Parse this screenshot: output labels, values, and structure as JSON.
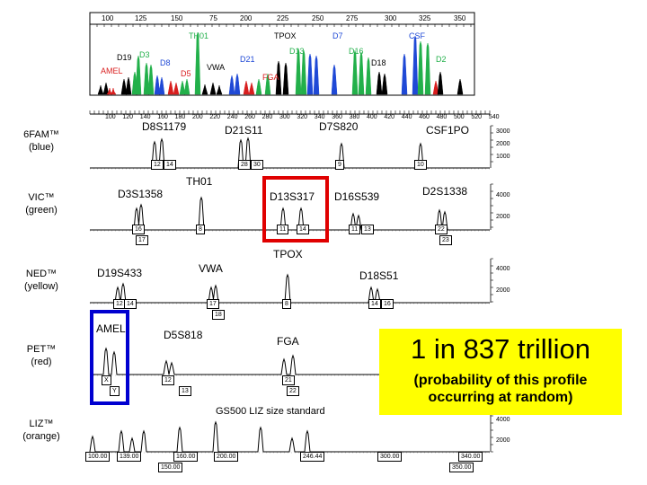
{
  "top_panel": {
    "ruler_ticks": [
      "100",
      "125",
      "150",
      "75",
      "200",
      "225",
      "250",
      "275",
      "300",
      "325",
      "350"
    ],
    "labels": {
      "th01": "TH01",
      "tpox": "TPOX",
      "d7": "D7",
      "csf": "CSF",
      "d13": "D13",
      "d16": "D16",
      "d19": "D19",
      "d3": "D3",
      "d8": "D8",
      "d21": "D21",
      "d18": "D18",
      "d2": "D2",
      "amel": "AMEL",
      "d5": "D5",
      "vwa": "VWA",
      "fga": "FGA"
    }
  },
  "main_ruler": [
    "100",
    "120",
    "140",
    "160",
    "180",
    "200",
    "220",
    "240",
    "260",
    "280",
    "300",
    "320",
    "340",
    "360",
    "380",
    "400",
    "420",
    "440",
    "460",
    "480",
    "500",
    "520",
    "540"
  ],
  "dyes": {
    "blue": {
      "name": "6FAM™",
      "color_word": "(blue)"
    },
    "green": {
      "name": "VIC™",
      "color_word": "(green)"
    },
    "yellow": {
      "name": "NED™",
      "color_word": "(yellow)"
    },
    "red": {
      "name": "PET™",
      "color_word": "(red)"
    },
    "orange": {
      "name": "LIZ™",
      "color_word": "(orange)"
    }
  },
  "y_axis": {
    "top": "3000",
    "upper": "2000",
    "lower": "1000"
  },
  "y_axis_4000": {
    "top": "4000",
    "upper": "2000"
  },
  "loci": {
    "d8s1179": "D8S1179",
    "d21s11": "D21S11",
    "d7s820": "D7S820",
    "csf1po": "CSF1PO",
    "th01": "TH01",
    "d3s1358": "D3S1358",
    "d13s317": "D13S317",
    "d16s539": "D16S539",
    "d2s1338": "D2S1338",
    "tpox": "TPOX",
    "vwa": "VWA",
    "d19s433": "D19S433",
    "d18s51": "D18S51",
    "amel": "AMEL",
    "d5s818": "D5S818",
    "fga": "FGA"
  },
  "allele_tags": {
    "d8": [
      "12",
      "14"
    ],
    "d21": [
      "28",
      "30"
    ],
    "d7": [
      "9"
    ],
    "csf": [
      "10"
    ],
    "d3": [
      "16",
      "17"
    ],
    "th01": [
      "8"
    ],
    "d13": [
      "11",
      "14"
    ],
    "d16": [
      "11",
      "13"
    ],
    "d2": [
      "22",
      "23"
    ],
    "d19": [
      "12",
      "14"
    ],
    "vwa": [
      "17",
      "18"
    ],
    "tpox": [
      "8"
    ],
    "d18": [
      "14",
      "16"
    ],
    "amel": [
      "X",
      "Y"
    ],
    "d5": [
      "12",
      "13"
    ],
    "fga": [
      "21",
      "22"
    ]
  },
  "size_standard": {
    "caption": "GS500 LIZ size standard",
    "tags": [
      "100.00",
      "139.00",
      "150.00",
      "160.00",
      "200.00",
      "246.44",
      "300.00",
      "340.00",
      "350.00"
    ]
  },
  "probability_box": {
    "headline": "1 in 837 trillion",
    "caption_line1": "(probability of this profile",
    "caption_line2": "occurring at random)"
  },
  "colors": {
    "blue": "#1f49d6",
    "green": "#22b04a",
    "black": "#000000",
    "red": "#d81e1e",
    "highlight_red": "#e00000",
    "highlight_blue": "#0000d0",
    "yellow": "#ffff00",
    "orange": "#e07000"
  }
}
